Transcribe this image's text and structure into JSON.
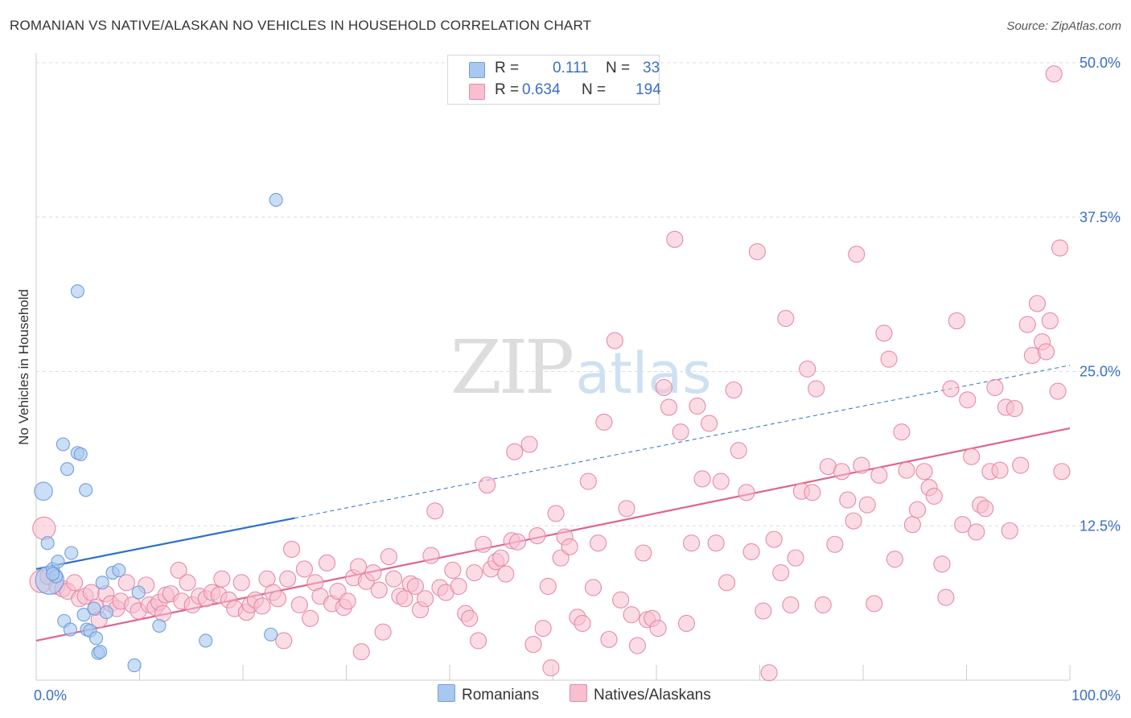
{
  "title": "ROMANIAN VS NATIVE/ALASKAN NO VEHICLES IN HOUSEHOLD CORRELATION CHART",
  "source": "Source: ZipAtlas.com",
  "watermark": {
    "zip": "ZIP",
    "atlas": "atlas"
  },
  "stats": [
    {
      "r_label": "R =",
      "r_value": "0.111",
      "n_label": "N =",
      "n_value": "33",
      "color": "#a9c8f0",
      "border": "#6f9fdc"
    },
    {
      "r_label": "R =",
      "r_value": "0.634",
      "n_label": "N =",
      "n_value": "194",
      "color": "#f7bfd0",
      "border": "#e68aa8"
    }
  ],
  "legend": [
    {
      "label": "Romanians",
      "color": "#a9c8f0",
      "border": "#6f9fdc"
    },
    {
      "label": "Natives/Alaskans",
      "color": "#f7bfd0",
      "border": "#e68aa8"
    }
  ],
  "chart_data": {
    "type": "scatter",
    "xlabel": "",
    "ylabel": "No Vehicles in Household",
    "xlim": [
      0,
      100
    ],
    "ylim": [
      0,
      50
    ],
    "x_tick_labels": [
      "0.0%",
      "100.0%"
    ],
    "y_ticks": [
      12.5,
      25.0,
      37.5,
      50.0
    ],
    "y_tick_labels": [
      "12.5%",
      "25.0%",
      "37.5%",
      "50.0%"
    ],
    "grid": true,
    "colors": {
      "romanian_fill": "#a9c8f0",
      "romanian_stroke": "#6f9fdc",
      "romanian_line": "#2e6fcc",
      "native_fill": "#f7bfd0",
      "native_stroke": "#e68aa8",
      "native_line": "#e0638f"
    },
    "series": [
      {
        "name": "Romanians",
        "trend": {
          "x0": 0,
          "y0": 9.0,
          "x1": 100,
          "y1": 25.5,
          "solid_until": 25
        },
        "points": [
          [
            0.7,
            15.3,
            14
          ],
          [
            1.1,
            11.1,
            10
          ],
          [
            1.3,
            8.1,
            22
          ],
          [
            1.6,
            9.0,
            10
          ],
          [
            1.9,
            8.4,
            10
          ],
          [
            2.1,
            9.6,
            10
          ],
          [
            2.7,
            4.8,
            10
          ],
          [
            2.6,
            19.1,
            10
          ],
          [
            3.0,
            17.1,
            10
          ],
          [
            3.3,
            4.1,
            10
          ],
          [
            3.4,
            10.3,
            10
          ],
          [
            4.0,
            31.5,
            10
          ],
          [
            4.0,
            18.4,
            10
          ],
          [
            4.3,
            18.3,
            10
          ],
          [
            4.6,
            5.3,
            10
          ],
          [
            4.8,
            15.4,
            10
          ],
          [
            4.9,
            4.1,
            10
          ],
          [
            5.2,
            4.0,
            10
          ],
          [
            5.6,
            5.8,
            10
          ],
          [
            5.8,
            3.4,
            10
          ],
          [
            6.0,
            2.2,
            10
          ],
          [
            6.2,
            2.3,
            10
          ],
          [
            6.4,
            7.9,
            10
          ],
          [
            6.8,
            5.5,
            10
          ],
          [
            7.4,
            8.7,
            10
          ],
          [
            8.0,
            8.9,
            10
          ],
          [
            9.5,
            1.2,
            10
          ],
          [
            9.9,
            7.1,
            10
          ],
          [
            11.9,
            4.4,
            10
          ],
          [
            16.4,
            3.2,
            10
          ],
          [
            22.7,
            3.7,
            10
          ],
          [
            23.2,
            38.9,
            10
          ],
          [
            1.6,
            8.6,
            10
          ]
        ]
      },
      {
        "name": "Natives/Alaskans",
        "trend": {
          "x0": 0,
          "y0": 3.2,
          "x1": 100,
          "y1": 20.4
        },
        "points": [
          [
            0.5,
            8.0,
            14
          ],
          [
            0.8,
            12.3,
            14
          ],
          [
            1.2,
            8.4,
            10
          ],
          [
            2.1,
            7.6,
            10
          ],
          [
            2.7,
            7.4,
            10
          ],
          [
            3.2,
            7.2,
            10
          ],
          [
            3.9,
            7.9,
            10
          ],
          [
            4.4,
            6.6,
            10
          ],
          [
            5.0,
            6.8,
            10
          ],
          [
            5.6,
            7.1,
            10
          ],
          [
            6.1,
            5.9,
            10
          ],
          [
            6.4,
            4.9,
            10
          ],
          [
            7.1,
            7.0,
            10
          ],
          [
            7.6,
            6.2,
            10
          ],
          [
            8.2,
            5.8,
            10
          ],
          [
            8.6,
            6.4,
            10
          ],
          [
            9.2,
            7.9,
            10
          ],
          [
            9.8,
            6.1,
            10
          ],
          [
            10.4,
            5.6,
            10
          ],
          [
            11.2,
            7.7,
            10
          ],
          [
            11.5,
            6.1,
            10
          ],
          [
            12.1,
            5.9,
            10
          ],
          [
            12.5,
            6.3,
            10
          ],
          [
            12.9,
            5.4,
            10
          ],
          [
            13.2,
            6.9,
            10
          ],
          [
            13.7,
            7.0,
            10
          ],
          [
            14.5,
            8.9,
            10
          ],
          [
            14.8,
            6.4,
            10
          ],
          [
            15.4,
            7.9,
            10
          ],
          [
            15.9,
            6.1,
            10
          ],
          [
            16.6,
            6.8,
            10
          ],
          [
            17.3,
            6.6,
            10
          ],
          [
            17.9,
            7.1,
            10
          ],
          [
            18.6,
            6.9,
            10
          ],
          [
            18.9,
            8.2,
            10
          ],
          [
            19.6,
            6.5,
            10
          ],
          [
            20.2,
            5.8,
            10
          ],
          [
            20.9,
            7.9,
            10
          ],
          [
            21.4,
            5.5,
            10
          ],
          [
            21.8,
            6.1,
            10
          ],
          [
            22.3,
            6.5,
            10
          ],
          [
            23.0,
            6.0,
            10
          ],
          [
            23.5,
            8.2,
            10
          ],
          [
            24.1,
            7.1,
            10
          ],
          [
            24.6,
            6.6,
            10
          ],
          [
            25.2,
            3.2,
            10
          ],
          [
            25.6,
            8.2,
            10
          ],
          [
            26.0,
            10.6,
            10
          ],
          [
            26.8,
            6.1,
            10
          ],
          [
            27.3,
            9.0,
            10
          ],
          [
            27.9,
            5.0,
            10
          ],
          [
            28.4,
            7.9,
            10
          ],
          [
            28.9,
            6.8,
            10
          ],
          [
            29.6,
            9.5,
            10
          ],
          [
            30.1,
            6.2,
            10
          ],
          [
            30.7,
            7.2,
            10
          ],
          [
            31.3,
            5.9,
            10
          ],
          [
            31.7,
            6.4,
            10
          ],
          [
            32.3,
            8.3,
            10
          ],
          [
            32.8,
            9.2,
            10
          ],
          [
            33.1,
            2.3,
            10
          ],
          [
            33.6,
            8.0,
            10
          ],
          [
            34.3,
            8.7,
            10
          ],
          [
            34.9,
            7.3,
            10
          ],
          [
            35.3,
            3.9,
            10
          ],
          [
            35.9,
            10.0,
            10
          ],
          [
            36.4,
            8.2,
            10
          ],
          [
            37.0,
            6.8,
            10
          ],
          [
            37.5,
            6.6,
            10
          ],
          [
            38.1,
            7.8,
            10
          ],
          [
            38.6,
            7.6,
            10
          ],
          [
            39.1,
            5.7,
            10
          ],
          [
            39.6,
            6.6,
            10
          ],
          [
            40.2,
            10.1,
            10
          ],
          [
            40.6,
            13.7,
            10
          ],
          [
            41.1,
            7.5,
            10
          ],
          [
            41.7,
            7.1,
            10
          ],
          [
            42.4,
            8.9,
            10
          ],
          [
            43.0,
            7.6,
            10
          ],
          [
            43.7,
            5.4,
            10
          ],
          [
            44.1,
            5.0,
            10
          ],
          [
            44.6,
            8.7,
            10
          ],
          [
            45.0,
            3.2,
            10
          ],
          [
            45.5,
            11.0,
            10
          ],
          [
            45.9,
            15.8,
            10
          ],
          [
            46.3,
            9.0,
            10
          ],
          [
            46.8,
            9.6,
            10
          ],
          [
            47.3,
            9.9,
            10
          ],
          [
            47.8,
            8.6,
            10
          ],
          [
            48.4,
            11.3,
            10
          ],
          [
            48.7,
            18.5,
            10
          ],
          [
            49.0,
            11.2,
            10
          ],
          [
            50.2,
            19.1,
            10
          ],
          [
            50.6,
            2.9,
            10
          ],
          [
            51.0,
            11.7,
            10
          ],
          [
            51.6,
            4.2,
            10
          ],
          [
            52.1,
            7.6,
            10
          ],
          [
            52.4,
            1.0,
            10
          ],
          [
            52.9,
            13.5,
            10
          ],
          [
            53.4,
            9.9,
            10
          ],
          [
            53.8,
            11.6,
            10
          ],
          [
            54.3,
            10.8,
            10
          ],
          [
            55.1,
            5.1,
            10
          ],
          [
            55.6,
            4.6,
            10
          ],
          [
            56.2,
            16.1,
            10
          ],
          [
            56.7,
            7.5,
            10
          ],
          [
            57.2,
            11.1,
            10
          ],
          [
            57.8,
            20.9,
            10
          ],
          [
            58.3,
            3.3,
            10
          ],
          [
            58.9,
            27.5,
            10
          ],
          [
            59.5,
            6.5,
            10
          ],
          [
            60.1,
            13.9,
            10
          ],
          [
            60.6,
            5.3,
            10
          ],
          [
            61.2,
            2.8,
            10
          ],
          [
            61.8,
            10.3,
            10
          ],
          [
            62.2,
            4.9,
            10
          ],
          [
            62.7,
            5.0,
            10
          ],
          [
            63.3,
            4.2,
            10
          ],
          [
            63.9,
            23.7,
            10
          ],
          [
            64.4,
            22.1,
            10
          ],
          [
            65.0,
            35.7,
            10
          ],
          [
            65.6,
            20.1,
            10
          ],
          [
            66.2,
            4.6,
            10
          ],
          [
            66.7,
            11.1,
            10
          ],
          [
            67.3,
            22.2,
            10
          ],
          [
            67.8,
            16.3,
            10
          ],
          [
            68.5,
            20.8,
            10
          ],
          [
            69.2,
            11.1,
            10
          ],
          [
            69.7,
            16.1,
            10
          ],
          [
            70.3,
            7.9,
            10
          ],
          [
            71.0,
            23.5,
            10
          ],
          [
            71.5,
            18.6,
            10
          ],
          [
            72.3,
            15.2,
            10
          ],
          [
            72.8,
            10.4,
            10
          ],
          [
            73.4,
            34.7,
            10
          ],
          [
            74.0,
            5.6,
            10
          ],
          [
            74.6,
            0.6,
            10
          ],
          [
            75.1,
            11.4,
            10
          ],
          [
            75.8,
            8.7,
            10
          ],
          [
            76.3,
            29.3,
            10
          ],
          [
            76.8,
            6.1,
            10
          ],
          [
            77.3,
            9.9,
            10
          ],
          [
            77.9,
            15.3,
            10
          ],
          [
            78.5,
            25.2,
            10
          ],
          [
            79.0,
            15.2,
            10
          ],
          [
            79.4,
            23.6,
            10
          ],
          [
            80.1,
            6.1,
            10
          ],
          [
            80.6,
            17.3,
            10
          ],
          [
            81.3,
            11.0,
            10
          ],
          [
            82.0,
            16.9,
            10
          ],
          [
            82.6,
            14.6,
            10
          ],
          [
            83.2,
            12.9,
            10
          ],
          [
            83.5,
            34.5,
            10
          ],
          [
            84.0,
            17.4,
            10
          ],
          [
            84.6,
            14.2,
            10
          ],
          [
            85.3,
            6.2,
            10
          ],
          [
            85.8,
            16.6,
            10
          ],
          [
            86.3,
            28.1,
            10
          ],
          [
            86.8,
            26.0,
            10
          ],
          [
            87.4,
            9.8,
            10
          ],
          [
            88.1,
            20.1,
            10
          ],
          [
            88.6,
            17.0,
            10
          ],
          [
            89.2,
            12.6,
            10
          ],
          [
            89.7,
            13.8,
            10
          ],
          [
            90.4,
            16.9,
            10
          ],
          [
            90.9,
            15.6,
            10
          ],
          [
            91.4,
            14.9,
            10
          ],
          [
            92.2,
            9.4,
            10
          ],
          [
            92.6,
            6.7,
            10
          ],
          [
            93.1,
            23.6,
            10
          ],
          [
            93.7,
            29.1,
            10
          ],
          [
            94.3,
            12.6,
            10
          ],
          [
            94.8,
            22.7,
            10
          ],
          [
            95.2,
            18.1,
            10
          ],
          [
            95.7,
            12.0,
            10
          ],
          [
            96.1,
            14.2,
            10
          ],
          [
            96.6,
            13.9,
            10
          ],
          [
            97.1,
            16.9,
            10
          ],
          [
            97.6,
            23.7,
            10
          ],
          [
            98.1,
            17.0,
            10
          ],
          [
            98.7,
            22.1,
            10
          ],
          [
            99.1,
            12.1,
            10
          ],
          [
            99.6,
            22.0,
            10
          ],
          [
            100.2,
            17.4,
            10
          ],
          [
            100.9,
            28.8,
            10
          ],
          [
            101.4,
            26.3,
            10
          ],
          [
            101.9,
            30.5,
            10
          ],
          [
            102.4,
            27.4,
            10
          ],
          [
            102.8,
            26.6,
            10
          ],
          [
            103.2,
            29.1,
            10
          ],
          [
            103.6,
            49.1,
            10
          ],
          [
            104.2,
            35.0,
            10
          ],
          [
            104.4,
            16.9,
            10
          ],
          [
            104.0,
            23.4,
            10
          ]
        ]
      }
    ]
  }
}
